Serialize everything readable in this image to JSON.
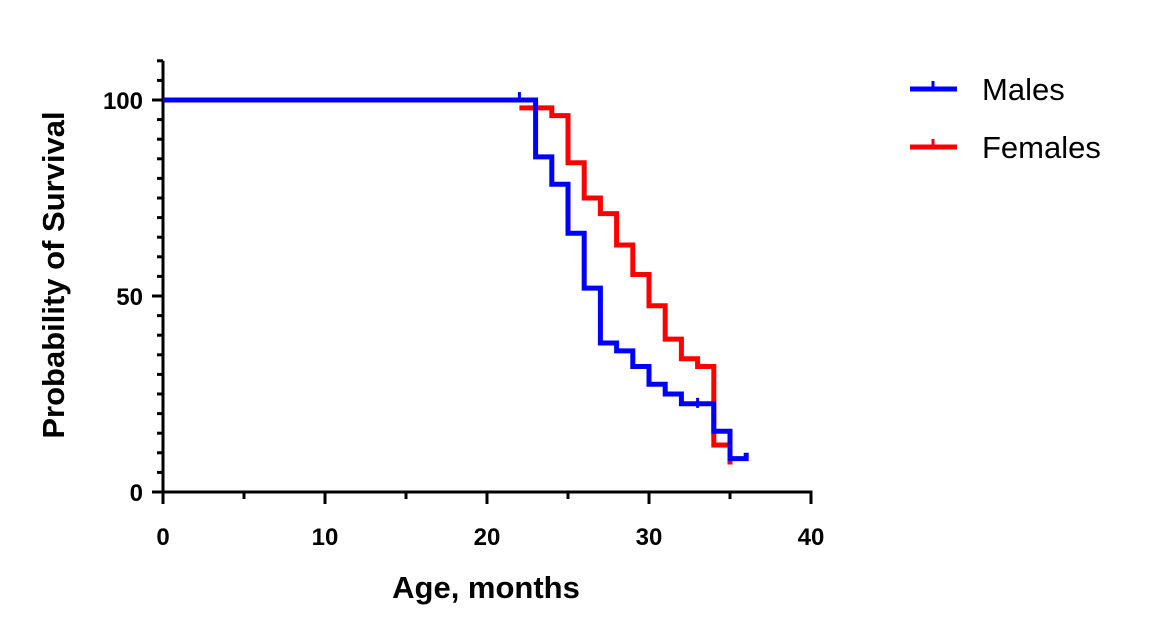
{
  "chart_data": {
    "type": "line",
    "subtype": "kaplan-meier-step",
    "title": "",
    "xlabel": "Age, months",
    "ylabel": "Probability of Survival",
    "xlim": [
      0,
      40
    ],
    "ylim": [
      0,
      110
    ],
    "x_ticks": [
      0,
      10,
      20,
      30,
      40
    ],
    "y_ticks": [
      0,
      50,
      100
    ],
    "grid": false,
    "legend_position": "top-right",
    "series": [
      {
        "name": "Males",
        "color": "#0000ff",
        "steps": [
          [
            0,
            100
          ],
          [
            23,
            85.5
          ],
          [
            24,
            78.5
          ],
          [
            25,
            66
          ],
          [
            26,
            52
          ],
          [
            27,
            38
          ],
          [
            28,
            36
          ],
          [
            29,
            32
          ],
          [
            30,
            27.5
          ],
          [
            31,
            25
          ],
          [
            32,
            22.5
          ],
          [
            34,
            15.5
          ],
          [
            35,
            8.5
          ],
          [
            36,
            10
          ]
        ],
        "censored": [
          [
            22,
            101
          ],
          [
            33,
            23
          ]
        ]
      },
      {
        "name": "Females",
        "color": "#ff0000",
        "steps": [
          [
            22,
            98
          ],
          [
            24,
            96
          ],
          [
            25,
            84
          ],
          [
            26,
            75
          ],
          [
            27,
            71
          ],
          [
            28,
            63
          ],
          [
            29,
            55.5
          ],
          [
            30,
            47.5
          ],
          [
            31,
            39
          ],
          [
            32,
            34
          ],
          [
            33,
            32
          ],
          [
            34,
            12
          ],
          [
            35,
            7
          ]
        ],
        "censored": []
      }
    ]
  }
}
